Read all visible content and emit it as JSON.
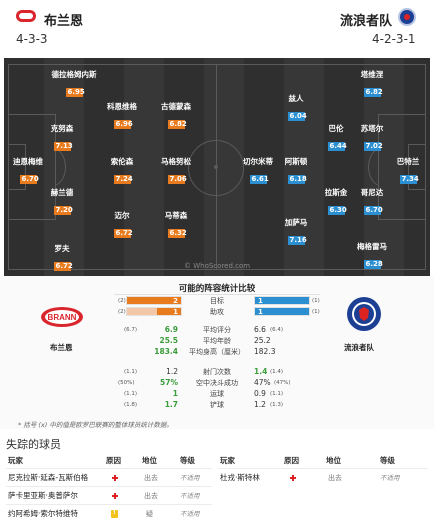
{
  "header": {
    "home_name": "布兰恩",
    "home_formation": "4-3-3",
    "away_name": "流浪者队",
    "away_formation": "4-2-3-1",
    "home_color": "#d9262d",
    "away_color": "#1c3f94"
  },
  "pitch": {
    "watermark": "© WhoScored.com",
    "home_players": [
      {
        "name": "德拉格姆内斯",
        "rating": "6.95"
      },
      {
        "name": "科恩维格",
        "rating": "6.96"
      },
      {
        "name": "古德蒙森",
        "rating": "6.82"
      },
      {
        "name": "克努森",
        "rating": "7.13"
      },
      {
        "name": "迪恩梅维",
        "rating": "6.70"
      },
      {
        "name": "索伦森",
        "rating": "7.24"
      },
      {
        "name": "马格努松",
        "rating": "7.06"
      },
      {
        "name": "赫兰德",
        "rating": "7.20"
      },
      {
        "name": "迈尔",
        "rating": "6.72"
      },
      {
        "name": "马蒂森",
        "rating": "6.32"
      },
      {
        "name": "罗夫",
        "rating": "6.72"
      }
    ],
    "away_players": [
      {
        "name": "塔维涅",
        "rating": "6.82"
      },
      {
        "name": "兹人",
        "rating": "6.04"
      },
      {
        "name": "巴伦",
        "rating": "6.44"
      },
      {
        "name": "苏塔尔",
        "rating": "7.02"
      },
      {
        "name": "切尔米蒂",
        "rating": "6.61"
      },
      {
        "name": "阿斯顿",
        "rating": "6.18"
      },
      {
        "name": "巴特兰",
        "rating": "7.34"
      },
      {
        "name": "拉斯金",
        "rating": "6.30"
      },
      {
        "name": "哥尼达",
        "rating": "6.70"
      },
      {
        "name": "加萨马",
        "rating": "7.16"
      },
      {
        "name": "梅格雷马",
        "rating": "6.28"
      }
    ]
  },
  "comparison": {
    "title": "可能的阵容统计比较",
    "home_label": "布兰恩",
    "away_label": "流浪者队",
    "bar_stats": [
      {
        "label": "目标",
        "home": "2",
        "away": "1",
        "home_prev": "(2)",
        "away_prev": "(1)",
        "home_fill": 1.0,
        "away_fill": 1.0
      },
      {
        "label": "助攻",
        "home": "1",
        "away": "1",
        "home_prev": "(2)",
        "away_prev": "(1)",
        "home_fill": 0.45,
        "away_fill": 1.0
      }
    ],
    "stats": [
      {
        "label": "平均评分",
        "home": "6.9",
        "home_prev": "(6.7)",
        "away": "6.6",
        "away_prev": "(6.4)",
        "home_green": true,
        "away_green": false
      },
      {
        "label": "平均年龄",
        "home": "25.5",
        "home_prev": "",
        "away": "25.2",
        "away_prev": "",
        "home_green": true,
        "away_green": false
      },
      {
        "label": "平均身高（厘米）",
        "home": "183.4",
        "home_prev": "",
        "away": "182.3",
        "away_prev": "",
        "home_green": true,
        "away_green": false
      },
      {
        "label": "射门次数",
        "home": "1.2",
        "home_prev": "(1.1)",
        "away": "1.4",
        "away_prev": "(1.4)",
        "home_green": false,
        "away_green": true
      },
      {
        "label": "空中决斗成功",
        "home": "57%",
        "home_prev": "(50%)",
        "away": "47%",
        "away_prev": "(47%)",
        "home_green": true,
        "away_green": false
      },
      {
        "label": "运球",
        "home": "1",
        "home_prev": "(1.1)",
        "away": "0.9",
        "away_prev": "(1.1)",
        "home_green": true,
        "away_green": false
      },
      {
        "label": "铲球",
        "home": "1.7",
        "home_prev": "(1.8)",
        "away": "1.2",
        "away_prev": "(1.3)",
        "home_green": true,
        "away_green": false
      }
    ],
    "footnote": "* 括号 (x) 中的值是欧罗巴联赛的整体球员统计数据。"
  },
  "missing": {
    "title": "失踪的球员",
    "headers": {
      "player": "玩家",
      "reason": "原因",
      "status": "地位",
      "level": "等级"
    },
    "left_rows": [
      {
        "player": "尼克拉斯·延森-瓦斯伯格",
        "reason": "injury",
        "status": "出去",
        "level": "不适用"
      },
      {
        "player": "萨卡里亚斯·奥普萨尔",
        "reason": "injury",
        "status": "出去",
        "level": "不适用"
      },
      {
        "player": "约阿希姆·索尔特维特",
        "reason": "doubtful",
        "status": "疑",
        "level": "不适用"
      }
    ],
    "right_rows": [
      {
        "player": "杜戎·斯特林",
        "reason": "injury",
        "status": "出去",
        "level": "不适用"
      }
    ]
  }
}
